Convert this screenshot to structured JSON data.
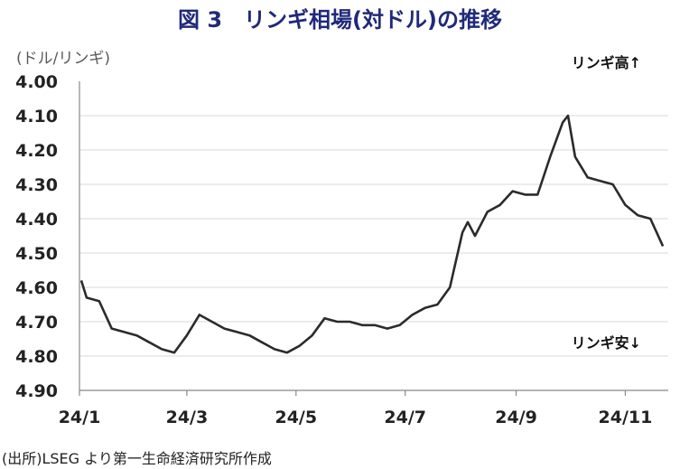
{
  "chart_data": {
    "type": "line",
    "title": "図 3　リンギ相場(対ドル)の推移",
    "ylabel": "(ドル/リンギ)",
    "ylim": [
      4.0,
      4.9
    ],
    "y_inverted": true,
    "y_ticks": [
      "4.00",
      "4.10",
      "4.20",
      "4.30",
      "4.40",
      "4.50",
      "4.60",
      "4.70",
      "4.80",
      "4.90"
    ],
    "x_ticks": [
      "24/1",
      "24/3",
      "24/5",
      "24/7",
      "24/9",
      "24/11"
    ],
    "annotations": {
      "top": "リンギ高↑",
      "bottom": "リンギ安↓"
    },
    "grid": "horizontal",
    "line_color": "#2b2b2b",
    "series": [
      {
        "x": [
          "2024-01-02",
          "2024-01-05",
          "2024-01-12",
          "2024-01-19",
          "2024-01-26",
          "2024-02-02",
          "2024-02-09",
          "2024-02-16",
          "2024-02-23",
          "2024-03-01",
          "2024-03-08",
          "2024-03-15",
          "2024-03-22",
          "2024-03-29",
          "2024-04-05",
          "2024-04-12",
          "2024-04-19",
          "2024-04-26",
          "2024-05-03",
          "2024-05-10",
          "2024-05-17",
          "2024-05-24",
          "2024-05-31",
          "2024-06-07",
          "2024-06-14",
          "2024-06-21",
          "2024-06-28",
          "2024-07-05",
          "2024-07-12",
          "2024-07-19",
          "2024-07-26",
          "2024-08-02",
          "2024-08-05",
          "2024-08-09",
          "2024-08-16",
          "2024-08-23",
          "2024-08-30",
          "2024-09-06",
          "2024-09-13",
          "2024-09-20",
          "2024-09-27",
          "2024-09-30",
          "2024-10-04",
          "2024-10-11",
          "2024-10-18",
          "2024-10-25",
          "2024-11-01",
          "2024-11-08",
          "2024-11-15",
          "2024-11-22"
        ],
        "values": [
          4.58,
          4.63,
          4.64,
          4.72,
          4.73,
          4.74,
          4.76,
          4.78,
          4.79,
          4.74,
          4.68,
          4.7,
          4.72,
          4.73,
          4.74,
          4.76,
          4.78,
          4.79,
          4.77,
          4.74,
          4.69,
          4.7,
          4.7,
          4.71,
          4.71,
          4.72,
          4.71,
          4.68,
          4.66,
          4.65,
          4.6,
          4.44,
          4.41,
          4.45,
          4.38,
          4.36,
          4.32,
          4.33,
          4.33,
          4.22,
          4.12,
          4.1,
          4.22,
          4.28,
          4.29,
          4.3,
          4.36,
          4.39,
          4.4,
          4.48
        ]
      }
    ]
  },
  "source_note": "(出所)LSEG より第一生命経済研究所作成"
}
